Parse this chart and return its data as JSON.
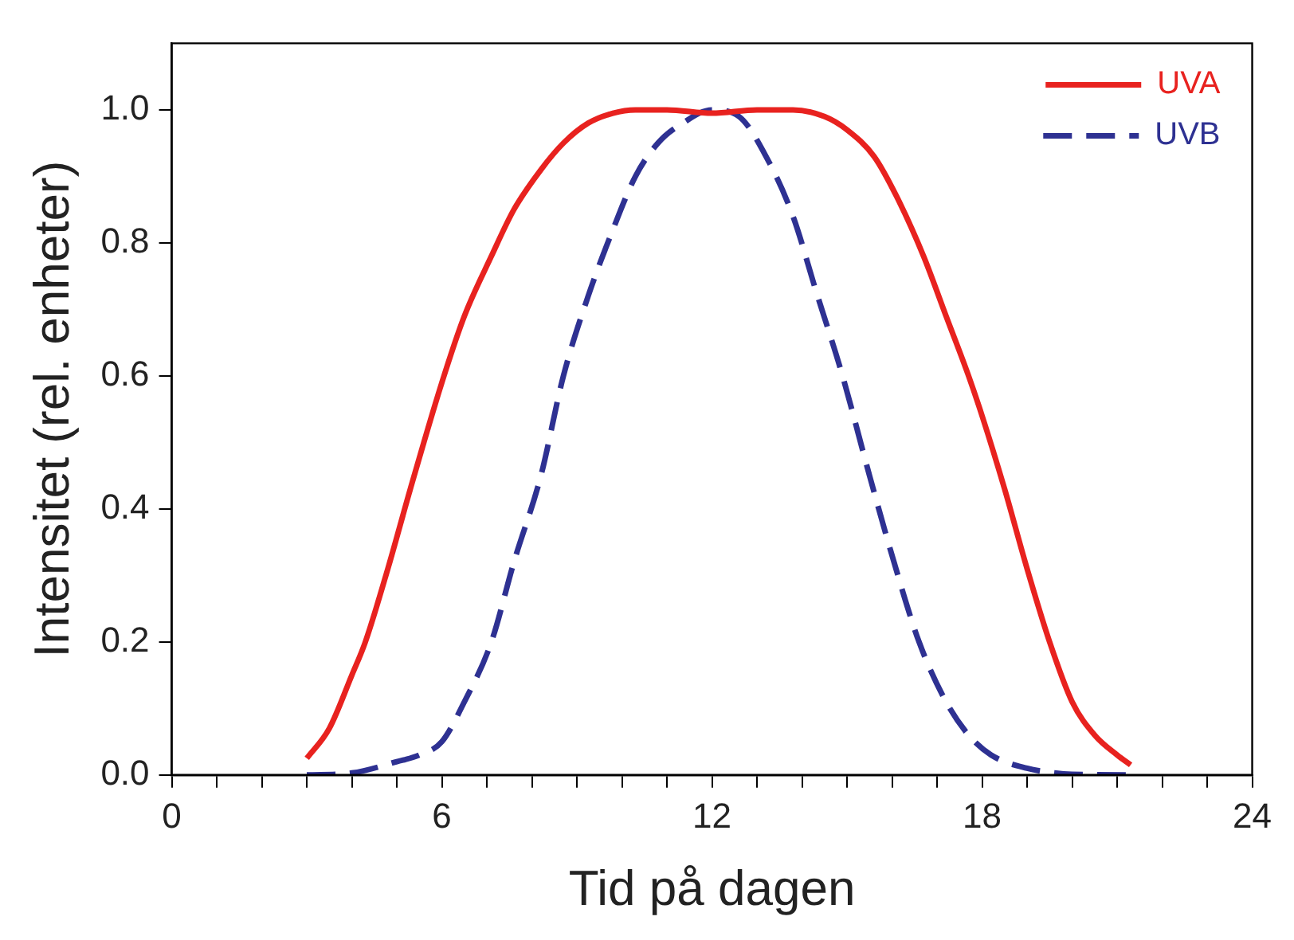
{
  "chart_data": {
    "type": "line",
    "xlabel": "Tid på dagen",
    "ylabel": "Intensitet (rel. enheter)",
    "xlim": [
      0,
      24
    ],
    "ylim": [
      0,
      1.1
    ],
    "xticks": [
      0,
      {
        "value": 1,
        "label": null
      },
      {
        "value": 2,
        "label": null
      },
      {
        "value": 3,
        "label": null
      },
      {
        "value": 4,
        "label": null
      },
      {
        "value": 5,
        "label": null
      },
      6,
      {
        "value": 7,
        "label": null
      },
      {
        "value": 8,
        "label": null
      },
      {
        "value": 9,
        "label": null
      },
      {
        "value": 10,
        "label": null
      },
      {
        "value": 11,
        "label": null
      },
      12,
      {
        "value": 13,
        "label": null
      },
      {
        "value": 14,
        "label": null
      },
      {
        "value": 15,
        "label": null
      },
      {
        "value": 16,
        "label": null
      },
      {
        "value": 17,
        "label": null
      },
      18,
      {
        "value": 19,
        "label": null
      },
      {
        "value": 20,
        "label": null
      },
      {
        "value": 21,
        "label": null
      },
      {
        "value": 22,
        "label": null
      },
      {
        "value": 23,
        "label": null
      },
      24
    ],
    "yticks": [
      {
        "value": 0,
        "label": "0.0"
      },
      0.2,
      0.4,
      0.6,
      0.8,
      {
        "value": 1,
        "label": "1.0"
      }
    ],
    "grid": false,
    "legend": "top right",
    "marker": "none",
    "series": [
      {
        "name": "UVA",
        "color": "#e8221f",
        "line_style": "solid",
        "x": [
          3,
          3.5,
          4,
          4.3,
          4.8,
          5.3,
          6,
          6.5,
          7.1,
          7.6,
          8.2,
          8.7,
          9.25,
          9.8,
          10.3,
          11,
          12,
          13,
          13.8,
          14.5,
          15,
          15.6,
          16.1,
          16.7,
          17.2,
          17.7,
          18,
          18.5,
          19,
          19.5,
          20,
          20.5,
          21,
          21.3
        ],
        "values": [
          0.025,
          0.07,
          0.15,
          0.2,
          0.31,
          0.43,
          0.59,
          0.69,
          0.78,
          0.85,
          0.91,
          0.95,
          0.98,
          0.995,
          1.0,
          1.0,
          0.995,
          1.0,
          1.0,
          0.99,
          0.97,
          0.93,
          0.87,
          0.78,
          0.69,
          0.6,
          0.54,
          0.43,
          0.31,
          0.2,
          0.11,
          0.06,
          0.03,
          0.015
        ]
      },
      {
        "name": "UVB",
        "color": "#2e3192",
        "line_style": "dashed",
        "x": [
          3,
          4,
          5,
          5.5,
          6,
          6.5,
          7.1,
          7.6,
          8.2,
          8.7,
          9.25,
          9.8,
          10.3,
          10.8,
          11.35,
          12,
          12.6,
          13.2,
          13.8,
          14.3,
          14.9,
          15.5,
          16,
          16.6,
          17.2,
          17.7,
          18.2,
          19,
          19.5,
          20,
          21.3
        ],
        "values": [
          0,
          0.003,
          0.02,
          0.03,
          0.05,
          0.11,
          0.2,
          0.32,
          0.45,
          0.6,
          0.72,
          0.82,
          0.9,
          0.95,
          0.98,
          1.0,
          0.99,
          0.93,
          0.84,
          0.73,
          0.6,
          0.45,
          0.33,
          0.2,
          0.11,
          0.06,
          0.03,
          0.01,
          0.004,
          0.001,
          0
        ]
      }
    ]
  }
}
